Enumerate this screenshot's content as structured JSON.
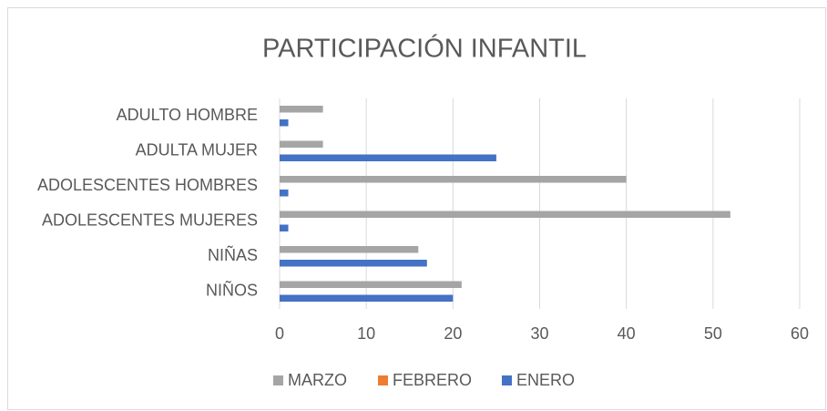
{
  "chart_data": {
    "type": "bar",
    "orientation": "horizontal",
    "title": "PARTICIPACIÓN INFANTIL",
    "categories": [
      "NIÑOS",
      "NIÑAS",
      "ADOLESCENTES MUJERES",
      "ADOLESCENTES HOMBRES",
      "ADULTA MUJER",
      "ADULTO HOMBRE"
    ],
    "series": [
      {
        "name": "ENERO",
        "color": "#4472c4",
        "values": [
          20,
          17,
          1,
          1,
          25,
          1
        ]
      },
      {
        "name": "FEBRERO",
        "color": "#ed7d31",
        "values": [
          0,
          0,
          0,
          0,
          0,
          0
        ]
      },
      {
        "name": "MARZO",
        "color": "#a5a5a5",
        "values": [
          21,
          16,
          52,
          40,
          5,
          5
        ]
      }
    ],
    "xlim": [
      0,
      60
    ],
    "xticks": [
      0,
      10,
      20,
      30,
      40,
      50,
      60
    ],
    "grid": true,
    "legend": "bottom"
  }
}
